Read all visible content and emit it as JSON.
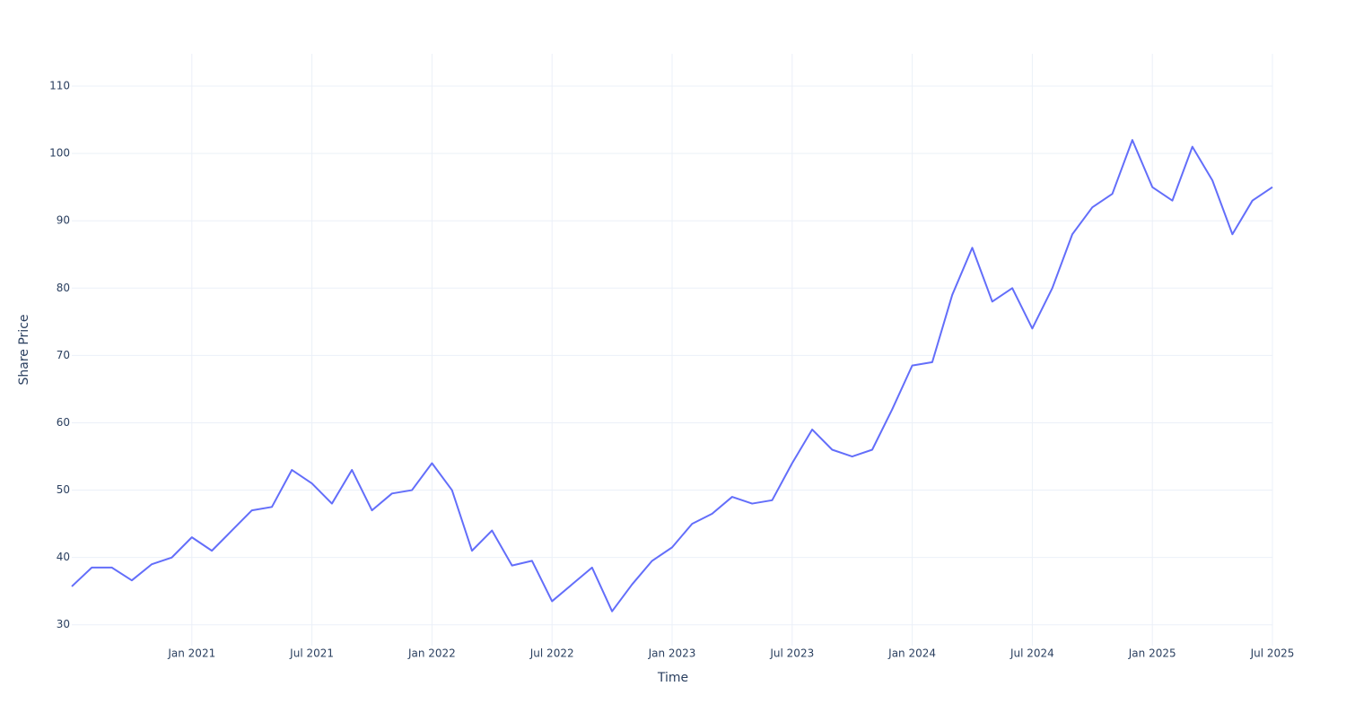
{
  "chart_data": {
    "type": "line",
    "x_label": "Time",
    "y_label": "Share Price",
    "x": [
      "2020-07",
      "2020-08",
      "2020-09",
      "2020-10",
      "2020-11",
      "2020-12",
      "2021-01",
      "2021-02",
      "2021-03",
      "2021-04",
      "2021-05",
      "2021-06",
      "2021-07",
      "2021-08",
      "2021-09",
      "2021-10",
      "2021-11",
      "2021-12",
      "2022-01",
      "2022-02",
      "2022-03",
      "2022-04",
      "2022-05",
      "2022-06",
      "2022-07",
      "2022-08",
      "2022-09",
      "2022-10",
      "2022-11",
      "2022-12",
      "2023-01",
      "2023-02",
      "2023-03",
      "2023-04",
      "2023-05",
      "2023-06",
      "2023-07",
      "2023-08",
      "2023-09",
      "2023-10",
      "2023-11",
      "2023-12",
      "2024-01",
      "2024-02",
      "2024-03",
      "2024-04",
      "2024-05",
      "2024-06",
      "2024-07",
      "2024-08",
      "2024-09",
      "2024-10",
      "2024-11",
      "2024-12",
      "2025-01",
      "2025-02",
      "2025-03",
      "2025-04",
      "2025-05",
      "2025-06",
      "2025-07"
    ],
    "series": [
      {
        "name": "Share Price",
        "color": "#636efa",
        "values": [
          35.7,
          38.5,
          38.5,
          36.6,
          39,
          40,
          43,
          41,
          44,
          47,
          47.5,
          53,
          51,
          48,
          53,
          47,
          49.5,
          50,
          54,
          50,
          41,
          44,
          38.8,
          39.5,
          33.5,
          36,
          38.5,
          32,
          36,
          39.5,
          41.5,
          45,
          46.5,
          49,
          48,
          48.5,
          54,
          59,
          56,
          55,
          56,
          62,
          68.5,
          69,
          79,
          86,
          78,
          80,
          74,
          80,
          88,
          92,
          94,
          102,
          95,
          93,
          101,
          96,
          88,
          93,
          95
        ]
      }
    ],
    "xlim": [
      "2020-07",
      "2025-07"
    ],
    "xticks": [
      {
        "value": "2021-01",
        "label": "Jan 2021"
      },
      {
        "value": "2021-07",
        "label": "Jul 2021"
      },
      {
        "value": "2022-01",
        "label": "Jan 2022"
      },
      {
        "value": "2022-07",
        "label": "Jul 2022"
      },
      {
        "value": "2023-01",
        "label": "Jan 2023"
      },
      {
        "value": "2023-07",
        "label": "Jul 2023"
      },
      {
        "value": "2024-01",
        "label": "Jan 2024"
      },
      {
        "value": "2024-07",
        "label": "Jul 2024"
      },
      {
        "value": "2025-01",
        "label": "Jan 2025"
      },
      {
        "value": "2025-07",
        "label": "Jul 2025"
      }
    ],
    "ylim": [
      26.9,
      114.8
    ],
    "yticks": [
      30,
      40,
      50,
      60,
      70,
      80,
      90,
      100,
      110
    ],
    "grid": true
  }
}
